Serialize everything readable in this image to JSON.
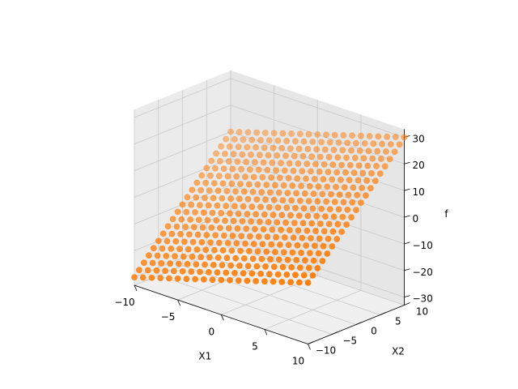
{
  "chart_data": {
    "type": "scatter3d",
    "title": "",
    "xlabel": "X1",
    "ylabel": "X2",
    "zlabel": "f",
    "xlim": [
      -10,
      10
    ],
    "ylim": [
      -10,
      10
    ],
    "zlim": [
      -33,
      33
    ],
    "xticks": [
      -10,
      -5,
      0,
      5,
      10
    ],
    "yticks": [
      -10,
      -5,
      0,
      5,
      10
    ],
    "zticks": [
      -30,
      -20,
      -10,
      0,
      10,
      20,
      30
    ],
    "grid": true,
    "legend": "none",
    "series": [
      {
        "marker_color": "#ff7f0e",
        "grid_points": 21,
        "x_range": [
          -10,
          10
        ],
        "y_range": [
          -10,
          10
        ],
        "surface": "f = X1 + 2*X2",
        "coef_x1": 1,
        "coef_x2": 2
      }
    ],
    "colors": {
      "pane_left": "#ebebeb",
      "pane_right": "#e6e6e6",
      "pane_floor": "#f0f0f0",
      "grid": "#c8c8c8",
      "marker": "#ff7f0e"
    }
  }
}
